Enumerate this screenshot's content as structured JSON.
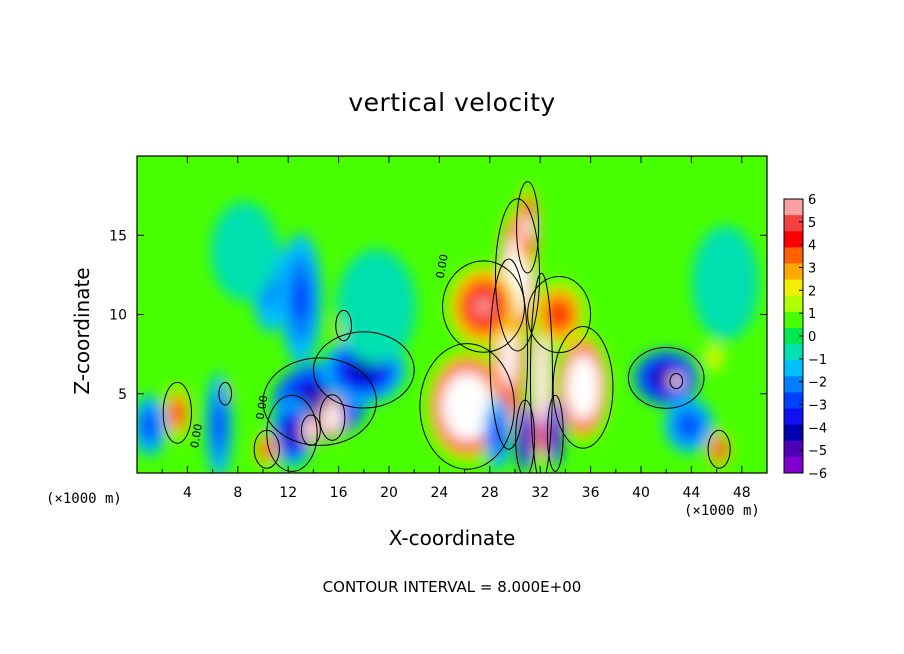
{
  "chart_data": {
    "type": "heatmap",
    "title": "vertical velocity",
    "xlabel": "X-coordinate",
    "ylabel": "Z-coordinate",
    "x_scale_note": "(×1000 m)",
    "x_scale_note_right": "(×1000 m)",
    "xlim": [
      0,
      50
    ],
    "ylim": [
      0,
      20
    ],
    "x_ticks": [
      4,
      8,
      12,
      16,
      20,
      24,
      28,
      32,
      36,
      40,
      44,
      48
    ],
    "y_ticks": [
      5,
      10,
      15
    ],
    "footer": "CONTOUR INTERVAL = 8.000E+00",
    "contour_labels": [
      {
        "text": "0.00",
        "x": 24.5,
        "y": 13.0
      },
      {
        "text": "0.00",
        "x": 5.0,
        "y": 2.3
      },
      {
        "text": "0.00",
        "x": 10.2,
        "y": 4.1
      }
    ],
    "colorbar": {
      "min": -6,
      "max": 6,
      "labels": [
        "6",
        "5",
        "4",
        "3",
        "2",
        "1",
        "0",
        "−1",
        "−2",
        "−3",
        "−4",
        "−5",
        "−6"
      ],
      "colors": [
        "#f9a0a0",
        "#f44040",
        "#ff0000",
        "#ff6000",
        "#ffa800",
        "#f0f000",
        "#b0ff00",
        "#48ff00",
        "#00e850",
        "#00e0b0",
        "#00c0ff",
        "#0080ff",
        "#0040ff",
        "#1010f0",
        "#0000b0",
        "#5000b8",
        "#8000d0"
      ]
    },
    "features": [
      {
        "x": 26.2,
        "y": 4.2,
        "value": 12,
        "rx": 3.0,
        "ry": 3.3
      },
      {
        "x": 29.5,
        "y": 7.5,
        "value": 8,
        "rx": 1.2,
        "ry": 5.0
      },
      {
        "x": 30.2,
        "y": 12.5,
        "value": 12,
        "rx": 1.4,
        "ry": 4.0
      },
      {
        "x": 31.0,
        "y": 15.5,
        "value": 7,
        "rx": 0.7,
        "ry": 2.4
      },
      {
        "x": 32.1,
        "y": 6.0,
        "value": 10,
        "rx": 0.7,
        "ry": 5.5
      },
      {
        "x": 35.4,
        "y": 5.4,
        "value": 12,
        "rx": 1.9,
        "ry": 3.2
      },
      {
        "x": 27.5,
        "y": 10.5,
        "value": 6,
        "rx": 2.6,
        "ry": 2.4
      },
      {
        "x": 33.5,
        "y": 10.0,
        "value": 4,
        "rx": 2.0,
        "ry": 2.0
      },
      {
        "x": 30.8,
        "y": 2.2,
        "value": -6,
        "rx": 0.6,
        "ry": 2.0
      },
      {
        "x": 33.2,
        "y": 2.5,
        "value": -5,
        "rx": 0.5,
        "ry": 2.0
      },
      {
        "x": 28.6,
        "y": 2.5,
        "value": -3,
        "rx": 0.9,
        "ry": 2.2
      },
      {
        "x": 14.5,
        "y": 4.5,
        "value": -5,
        "rx": 3.6,
        "ry": 2.3
      },
      {
        "x": 18.0,
        "y": 6.5,
        "value": -4,
        "rx": 3.2,
        "ry": 2.0
      },
      {
        "x": 12.3,
        "y": 2.5,
        "value": -4,
        "rx": 1.6,
        "ry": 2.0
      },
      {
        "x": 15.5,
        "y": 3.5,
        "value": 12,
        "rx": 0.8,
        "ry": 1.2
      },
      {
        "x": 13.8,
        "y": 2.7,
        "value": 10,
        "rx": 0.6,
        "ry": 0.8
      },
      {
        "x": 16.4,
        "y": 9.3,
        "value": 12,
        "rx": 0.5,
        "ry": 0.8
      },
      {
        "x": 7.0,
        "y": 5.0,
        "value": 9,
        "rx": 0.4,
        "ry": 0.6
      },
      {
        "x": 13.0,
        "y": 11.0,
        "value": -3,
        "rx": 1.5,
        "ry": 4.0
      },
      {
        "x": 10.5,
        "y": 12.0,
        "value": -2,
        "rx": 1.2,
        "ry": 3.0
      },
      {
        "x": 19.0,
        "y": 10.5,
        "value": -1,
        "rx": 3.0,
        "ry": 3.5
      },
      {
        "x": 3.2,
        "y": 3.8,
        "value": 4,
        "rx": 0.9,
        "ry": 1.6
      },
      {
        "x": 10.3,
        "y": 1.5,
        "value": 4,
        "rx": 0.8,
        "ry": 1.0
      },
      {
        "x": 1.0,
        "y": 3.0,
        "value": -3,
        "rx": 1.2,
        "ry": 1.8
      },
      {
        "x": 6.5,
        "y": 3.0,
        "value": -3,
        "rx": 0.9,
        "ry": 3.2
      },
      {
        "x": 42.0,
        "y": 6.0,
        "value": -5,
        "rx": 2.4,
        "ry": 1.6
      },
      {
        "x": 43.8,
        "y": 3.0,
        "value": -3,
        "rx": 1.8,
        "ry": 1.6
      },
      {
        "x": 42.8,
        "y": 5.8,
        "value": 12,
        "rx": 0.4,
        "ry": 0.4
      },
      {
        "x": 46.2,
        "y": 1.5,
        "value": 5,
        "rx": 0.7,
        "ry": 1.0
      },
      {
        "x": 45.8,
        "y": 7.3,
        "value": 2,
        "rx": 0.6,
        "ry": 0.8
      },
      {
        "x": 46.7,
        "y": 12.0,
        "value": -1,
        "rx": 2.5,
        "ry": 3.5
      },
      {
        "x": 8.5,
        "y": 14.0,
        "value": -1,
        "rx": 2.5,
        "ry": 3.0
      }
    ]
  }
}
